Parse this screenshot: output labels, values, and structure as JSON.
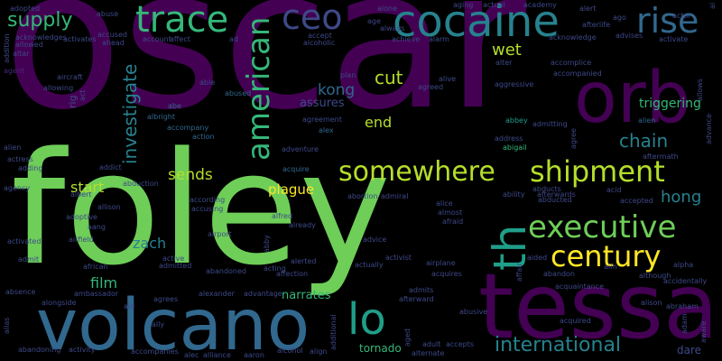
{
  "colors": {
    "background": "#000000",
    "purple": "#440154",
    "dark_purple": "#482878",
    "indigo": "#3e4989",
    "blue": "#31688e",
    "teal": "#26828e",
    "teal_green": "#1f9e89",
    "green": "#35b779",
    "lime": "#6ece58",
    "yellow_green": "#b5de2b",
    "yellow": "#fde725"
  },
  "words": {
    "oscar": "oscar",
    "foley": "foley",
    "tessa": "tessa",
    "volcano": "volcano",
    "orb": "orb",
    "cocaine": "cocaine",
    "trace": "trace",
    "ceo": "ceo",
    "rise": "rise",
    "american": "american",
    "somewhere": "somewhere",
    "shipment": "shipment",
    "executive": "executive",
    "century": "century",
    "th": "th",
    "lo": "lo",
    "international": "international",
    "supply": "supply",
    "investigate": "investigate",
    "chain": "chain",
    "hong": "hong",
    "kong": "kong",
    "cut": "cut",
    "wet": "wet",
    "end": "end",
    "sends": "sends",
    "start": "start",
    "plague": "plague",
    "zach": "zach",
    "film": "film",
    "triggering": "triggering",
    "narrates": "narrates",
    "tornado": "tornado",
    "assures": "assures",
    "dare": "dare",
    "abbey": "abbey",
    "agent": "agent",
    "abe": "abe",
    "acquire": "acquire",
    "alien": "alien",
    "aircraft": "aircraft",
    "allowing": "allowing",
    "act": "act",
    "rig": "rig",
    "albright": "albright",
    "accompany": "accompany",
    "action": "action",
    "abused": "abused",
    "agreement": "agreement",
    "alex": "alex",
    "able": "able",
    "aging": "aging",
    "actual": "actual",
    "academy": "academy",
    "alert": "alert",
    "actor": "actor",
    "abuse": "abuse",
    "accused": "accused",
    "ahead": "ahead",
    "account": "account",
    "affect": "affect",
    "ad": "ad",
    "accept": "accept",
    "alcoholic": "alcoholic",
    "alone": "alone",
    "always": "always",
    "age": "age",
    "achieve": "achieve",
    "alarm": "alarm",
    "alter": "alter",
    "acknowledge": "acknowledge",
    "activate": "activate",
    "advises": "advises",
    "accomplice": "accomplice",
    "accompanied": "accompanied",
    "admitting": "admitting",
    "allows": "allows",
    "advance": "advance",
    "addition": "addition",
    "altar": "altar",
    "acknowledges": "acknowledges",
    "allowed": "allowed",
    "activates": "activates",
    "adopted": "adopted",
    "aggressive": "aggressive",
    "address": "address",
    "abigail": "abigail",
    "aftermath": "aftermath",
    "acid": "acid",
    "accepted": "accepted",
    "agree": "agree",
    "alive": "alive",
    "agreed": "agreed",
    "plan": "plan",
    "alien_left": "alien",
    "actress": "actress",
    "adding": "adding",
    "addict": "addict",
    "abduction": "abduction",
    "albert": "albert",
    "agency": "agency",
    "allison": "allison",
    "adoptive": "adoptive",
    "aang": "aang",
    "airfield": "airfield",
    "activated": "activated",
    "admit": "admit",
    "african": "african",
    "absence": "absence",
    "alongside": "alongside",
    "alias": "alias",
    "abandoning": "abandoning",
    "activity": "activity",
    "accompanies": "accompanies",
    "alec": "alec",
    "alliance": "alliance",
    "aaron": "aaron",
    "align": "align",
    "ambassador": "ambassador",
    "aid": "aid",
    "agrees": "agrees",
    "ally": "ally",
    "alexander": "alexander",
    "advantage": "advantage",
    "alcohol": "alcohol",
    "active": "active",
    "admitted": "admitted",
    "abandoned": "abandoned",
    "according": "according",
    "accusing": "accusing",
    "airport": "airport",
    "alfred": "alfred",
    "already": "already",
    "alerted": "alerted",
    "affection": "affection",
    "acting": "acting",
    "abby": "abby",
    "adventure": "adventure",
    "admiral": "admiral",
    "abortion": "abortion",
    "advice": "advice",
    "activist": "activist",
    "actually": "actually",
    "alice": "alice",
    "almost": "almost",
    "afraid": "afraid",
    "airplane": "airplane",
    "acquires": "acquires",
    "admits": "admits",
    "afterward": "afterward",
    "abusive": "abusive",
    "adult": "adult",
    "accepts": "accepts",
    "alternate": "alternate",
    "additional": "additional",
    "aged": "aged",
    "abducts": "abducts",
    "abducted": "abducted",
    "ability": "ability",
    "afterwards": "afterwards",
    "affair": "affair",
    "aided": "aided",
    "abandon": "abandon",
    "acquaintance": "acquaintance",
    "acquired": "acquired",
    "although": "although",
    "alison": "alison",
    "abraham": "abraham",
    "accidentally": "accidentally",
    "alpha": "alpha",
    "aim": "aim",
    "afterlife": "afterlife",
    "ago": "ago",
    "ai": "ai",
    "adam": "adam",
    "aware": "aware"
  }
}
